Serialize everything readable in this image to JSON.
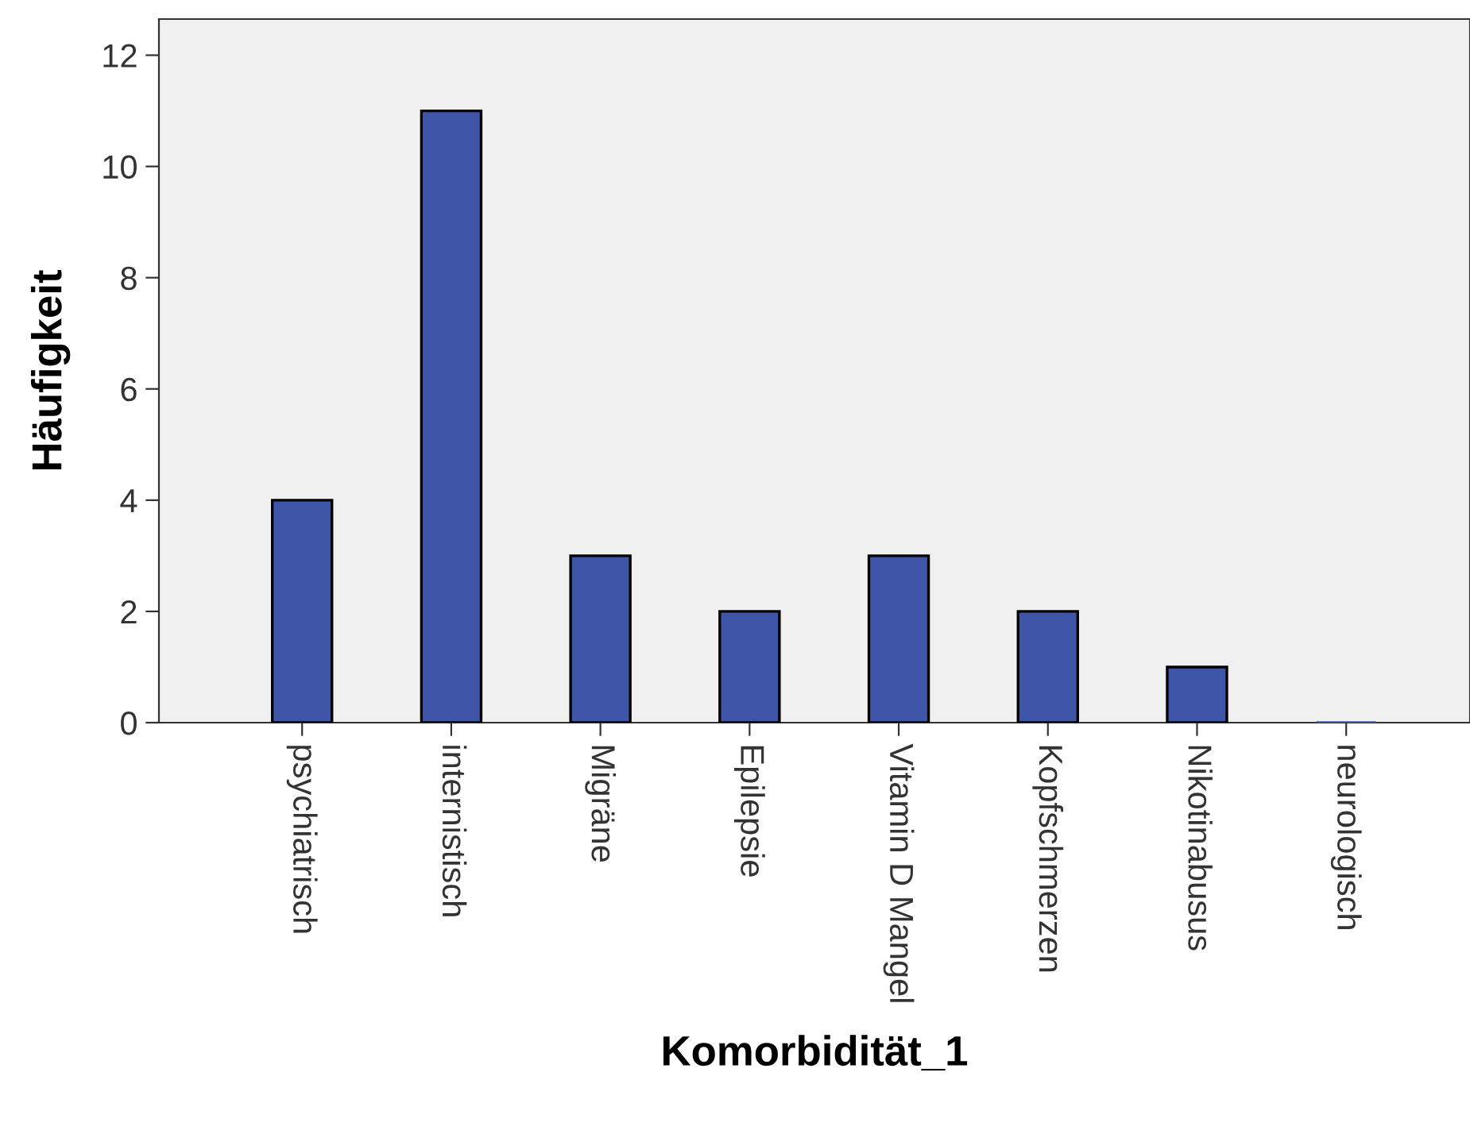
{
  "chart_data": {
    "type": "bar",
    "xlabel": "Komorbidität_1",
    "ylabel": "Häufigkeit",
    "categories": [
      "psychiatrisch",
      "internistisch",
      "Migräne",
      "Epilepsie",
      "Vitamin D Mangel",
      "Kopfschmerzen",
      "Nikotinabusus",
      "neurologisch"
    ],
    "values": [
      4,
      11,
      3,
      2,
      3,
      2,
      1,
      0
    ],
    "color": "#3f56a8",
    "ylim": [
      0,
      12.65
    ],
    "yticks": [
      0,
      2,
      4,
      6,
      8,
      10,
      12
    ],
    "grid": false
  }
}
